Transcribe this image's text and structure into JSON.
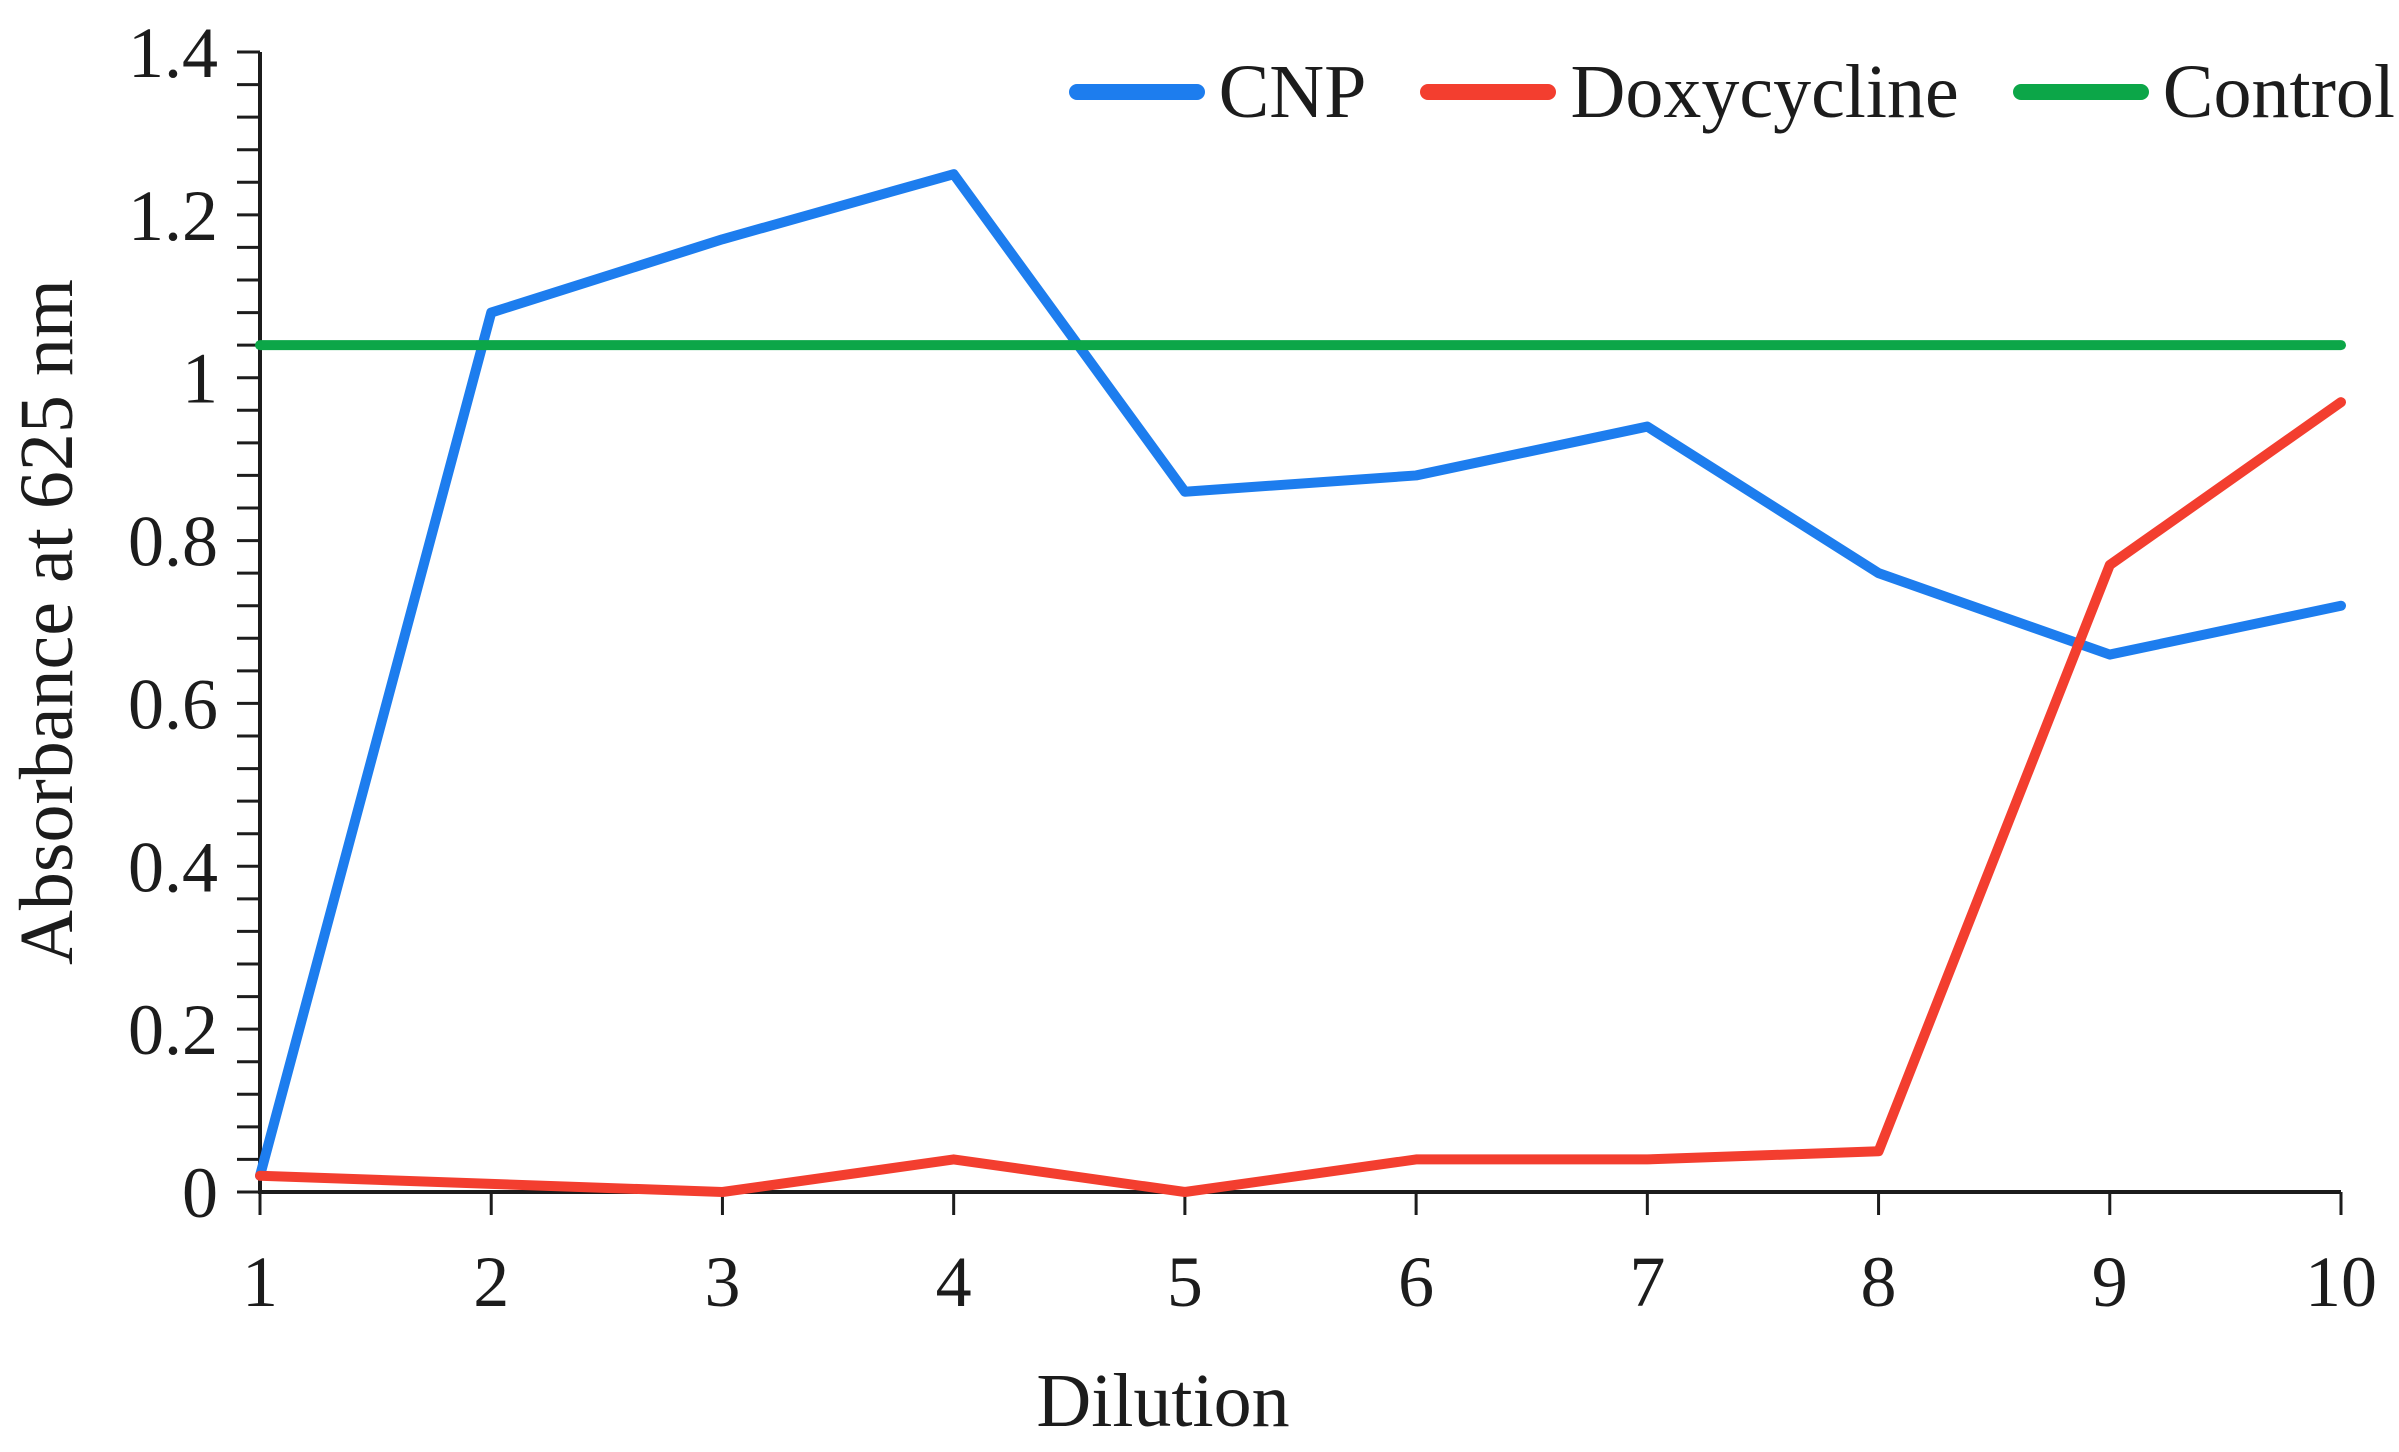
{
  "figure": {
    "background_color": "#ffffff",
    "text_color": "#1c1c1c"
  },
  "chart_data": {
    "type": "line",
    "x": [
      1,
      2,
      3,
      4,
      5,
      6,
      7,
      8,
      9,
      10
    ],
    "x_tick_labels": [
      "1",
      "2",
      "3",
      "4",
      "5",
      "6",
      "7",
      "8",
      "9",
      "10"
    ],
    "series": [
      {
        "name": "CNP",
        "color": "#1d7dee",
        "values": [
          0.02,
          1.08,
          1.17,
          1.25,
          0.86,
          0.88,
          0.94,
          0.76,
          0.66,
          0.72
        ]
      },
      {
        "name": "Doxycycline",
        "color": "#f33e2f",
        "values": [
          0.02,
          0.01,
          0,
          0.04,
          0,
          0.04,
          0.04,
          0.05,
          0.77,
          0.97
        ]
      },
      {
        "name": "Control",
        "color": "#0ca648",
        "values": [
          1.04,
          1.04,
          1.04,
          1.04,
          1.04,
          1.04,
          1.04,
          1.04,
          1.04,
          1.04
        ]
      }
    ],
    "xlabel": "Dilution",
    "ylabel": "Absorbance at 625 nm",
    "xlim": [
      1,
      10
    ],
    "ylim": [
      0,
      1.4
    ],
    "y_major_ticks": [
      0,
      0.2,
      0.4,
      0.6,
      0.8,
      1,
      1.2,
      1.4
    ],
    "y_major_tick_labels": [
      "0",
      "0.2",
      "0.4",
      "0.6",
      "0.8",
      "1",
      "1.2",
      "1.4"
    ],
    "y_minor_tick_step": 0.04,
    "grid": false,
    "legend_position": "top-right"
  }
}
